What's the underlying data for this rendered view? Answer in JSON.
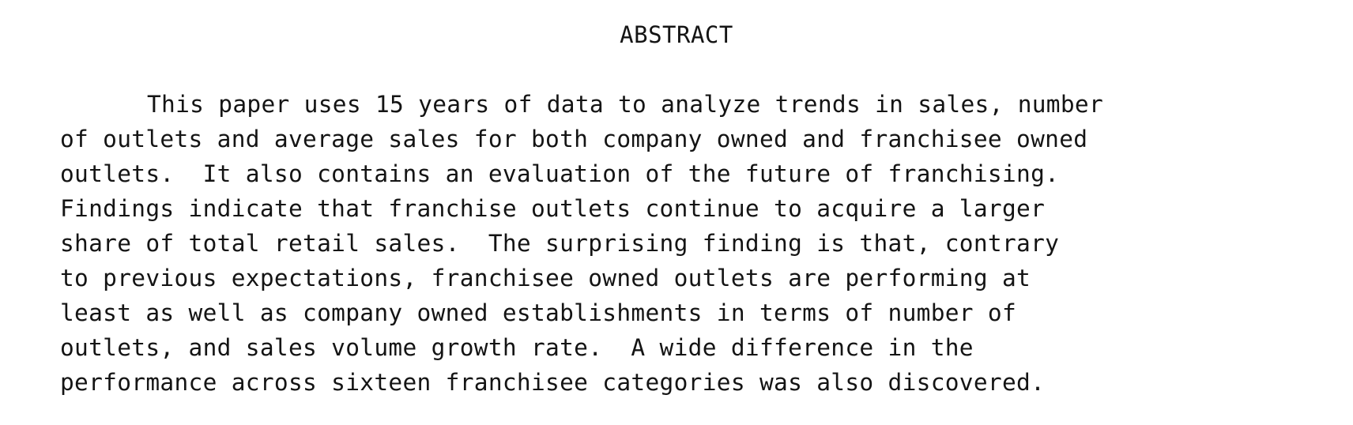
{
  "heading": "ABSTRACT",
  "abstract_lines": [
    "This paper uses 15 years of data to analyze trends in sales, number",
    "of outlets and average sales for both company owned and franchisee owned",
    "outlets.  It also contains an evaluation of the future of franchising.",
    "Findings indicate that franchise outlets continue to acquire a larger",
    "share of total retail sales.  The surprising finding is that, contrary",
    "to previous expectations, franchisee owned outlets are performing at",
    "least as well as company owned establishments in terms of number of",
    "outlets, and sales volume growth rate.  A wide difference in the",
    "performance across sixteen franchisee categories was also discovered."
  ]
}
